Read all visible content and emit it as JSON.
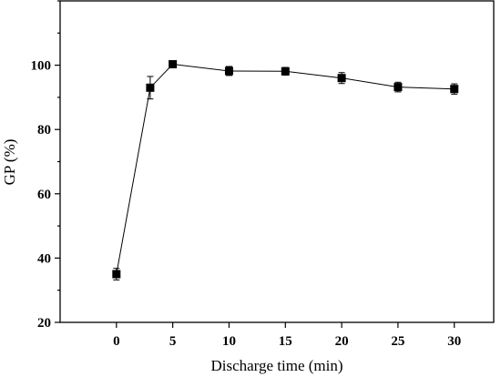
{
  "chart_data": {
    "type": "line",
    "xlabel": "Discharge time (min)",
    "ylabel": "GP (%)",
    "xlim": [
      -5,
      33.5
    ],
    "ylim": [
      20,
      120
    ],
    "x_ticks": [
      0,
      5,
      10,
      15,
      20,
      25,
      30
    ],
    "y_ticks": [
      20,
      40,
      60,
      80,
      100
    ],
    "grid": false,
    "legend": "none",
    "marker": "square",
    "color": "#000000",
    "series": [
      {
        "x": [
          0,
          3,
          5,
          10,
          15,
          20,
          25,
          30
        ],
        "y": [
          35.0,
          93.0,
          100.3,
          98.2,
          98.1,
          96.0,
          93.2,
          92.6
        ],
        "err": [
          1.8,
          3.5,
          0.5,
          1.4,
          1.2,
          1.7,
          1.5,
          1.6
        ]
      }
    ]
  }
}
